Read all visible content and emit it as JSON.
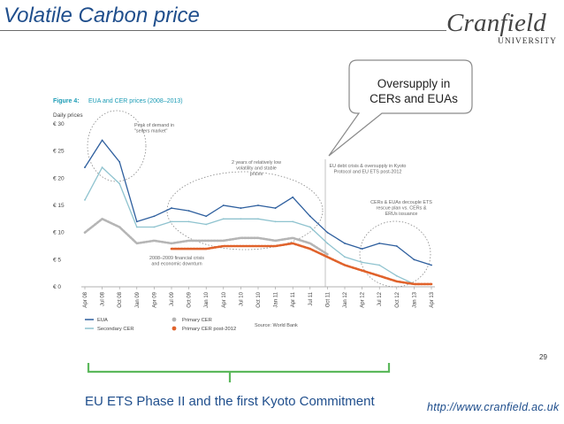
{
  "slide": {
    "title": "Volatile Carbon price",
    "logo_word": "Cranfield",
    "logo_sub": "UNIVERSITY",
    "callout": [
      "Oversupply in",
      "CERs and EUAs"
    ],
    "page_number": "29",
    "caption": "EU ETS Phase II and the first Kyoto Commitment",
    "url": "http://www.cranfield.ac.uk",
    "colors": {
      "title": "#1f4e8c",
      "eua": "#2e5f9e",
      "secondary_cer": "#8fc3cf",
      "primary_cer": "#b5b5b5",
      "primary_cer_post_2012": "#e0622b",
      "brace": "#5cb85c",
      "dashed_ellipse": "#888888"
    }
  },
  "chart_data": {
    "type": "line",
    "figure_label": "Figure 4:",
    "title": "EUA and CER prices (2008–2013)",
    "ylabel": "Daily prices",
    "ylim": [
      0,
      30
    ],
    "yticks": [
      "€ 0",
      "€ 5",
      "€ 10",
      "€ 15",
      "€ 20",
      "€ 25",
      "€ 30"
    ],
    "x": [
      "Apr 08",
      "Jul 08",
      "Oct 08",
      "Jan 09",
      "Apr 09",
      "Jul 09",
      "Oct 09",
      "Jan 10",
      "Apr 10",
      "Jul 10",
      "Oct 10",
      "Jan 11",
      "Apr 11",
      "Jul 11",
      "Oct 11",
      "Jan 12",
      "Apr 12",
      "Jul 12",
      "Oct 12",
      "Jan 13",
      "Apr 13"
    ],
    "series": [
      {
        "name": "EUA",
        "values": [
          22,
          27,
          23,
          12,
          13,
          14.5,
          14,
          13,
          15,
          14.5,
          15,
          14.5,
          16.5,
          13,
          10,
          8,
          7,
          8,
          7.5,
          5,
          4
        ]
      },
      {
        "name": "Secondary CER",
        "values": [
          16,
          22,
          19,
          11,
          11,
          12,
          12,
          11.5,
          12.5,
          12.5,
          12.5,
          12,
          12,
          11,
          8,
          5.5,
          4.5,
          4,
          2,
          0.5,
          0.5
        ]
      },
      {
        "name": "Primary CER",
        "values": [
          10,
          12.5,
          11,
          8,
          8.5,
          8,
          8.5,
          8.5,
          8.5,
          9,
          9,
          8.5,
          9,
          8,
          6,
          null,
          null,
          null,
          null,
          null,
          null
        ]
      },
      {
        "name": "Primary CER post-2012",
        "values": [
          null,
          null,
          null,
          null,
          null,
          7,
          7,
          7,
          7.5,
          7.5,
          7.5,
          7.5,
          8,
          7,
          5.5,
          4,
          3,
          2,
          1,
          0.5,
          0.5
        ]
      }
    ],
    "annotations": [
      "Peak of demand in \"sellers market\"",
      "2 years of relatively low volatility and stable prices",
      "EU debt crisis & oversupply in Kyoto Protocol and EU ETS post-2012",
      "CERs & EUAs decouple ETS rescue plan vs. CERs & ERUs issuance",
      "2008–2009 financial crisis and economic downturn"
    ],
    "source": "Source: World Bank",
    "grid": false,
    "legend": "bottom"
  }
}
